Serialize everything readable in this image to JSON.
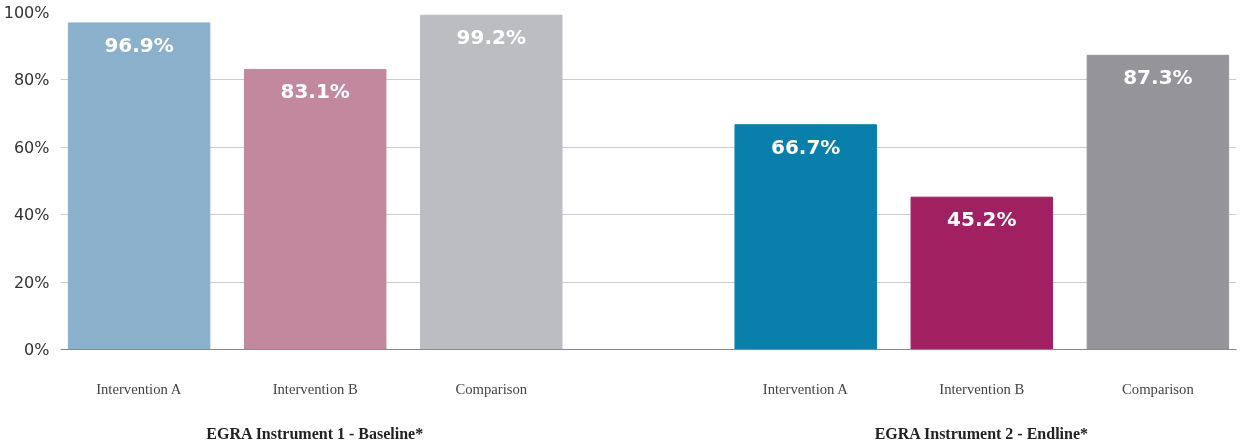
{
  "chart_data": {
    "type": "bar",
    "categories": [
      "EGRA Instrument 1 - Baseline*",
      "EGRA Instrument 2 - Endline*"
    ],
    "series": [
      {
        "name": "Intervention A",
        "colors": [
          "#8ab0cb",
          "#0880ab"
        ],
        "values": [
          96.9,
          66.7
        ],
        "value_labels": [
          "96.9%",
          "66.7%"
        ]
      },
      {
        "name": "Intervention B",
        "colors": [
          "#c2889d",
          "#a02062"
        ],
        "values": [
          83.1,
          45.2
        ],
        "value_labels": [
          "83.1%",
          "45.2%"
        ]
      },
      {
        "name": "Comparison",
        "colors": [
          "#bcbdc1",
          "#959599"
        ],
        "values": [
          99.2,
          87.3
        ],
        "value_labels": [
          "99.2%",
          "87.3%"
        ]
      }
    ],
    "ylim": [
      0,
      100
    ],
    "yticks": [
      {
        "value": 0,
        "label": "0%"
      },
      {
        "value": 20,
        "label": "20%"
      },
      {
        "value": 40,
        "label": "40%"
      },
      {
        "value": 60,
        "label": "60%"
      },
      {
        "value": 80,
        "label": "80%"
      },
      {
        "value": 100,
        "label": "100%"
      }
    ],
    "grid": "y",
    "legend": false
  }
}
